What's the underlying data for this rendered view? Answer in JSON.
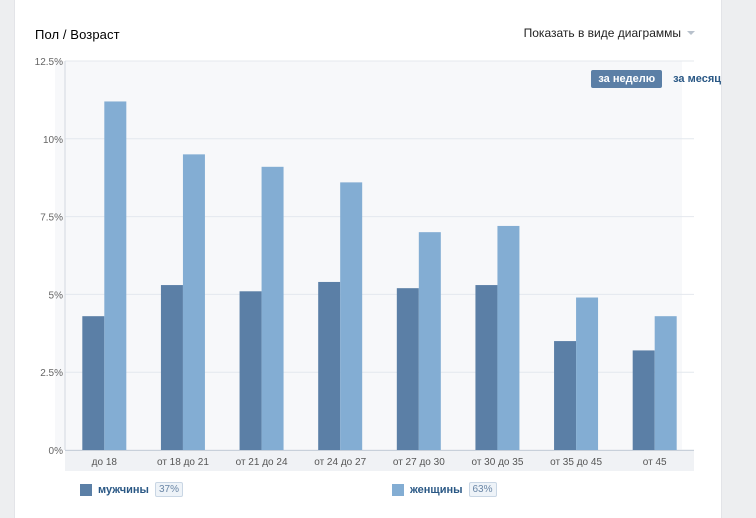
{
  "header": {
    "title": "Пол / Возраст",
    "view_toggle": "Показать в виде диаграммы"
  },
  "period": {
    "week": "за неделю",
    "month": "за месяц"
  },
  "colors": {
    "male": "#5b7fa6",
    "female": "#83add3"
  },
  "legend": [
    {
      "label": "мужчины",
      "pct": "37%"
    },
    {
      "label": "женщины",
      "pct": "63%"
    }
  ],
  "chart_data": {
    "type": "bar",
    "categories": [
      "до 18",
      "от 18 до 21",
      "от 21 до 24",
      "от 24 до 27",
      "от 27 до 30",
      "от 30 до 35",
      "от 35 до 45",
      "от 45"
    ],
    "series": [
      {
        "name": "мужчины",
        "values": [
          4.3,
          5.3,
          5.1,
          5.4,
          5.2,
          5.3,
          3.5,
          3.2
        ]
      },
      {
        "name": "женщины",
        "values": [
          11.2,
          9.5,
          9.1,
          8.6,
          7.0,
          7.2,
          4.9,
          4.3
        ]
      }
    ],
    "yticks": [
      "0%",
      "2.5%",
      "5%",
      "7.5%",
      "10%",
      "12.5%"
    ],
    "ylim": [
      0,
      12.5
    ],
    "grid": true,
    "legend_position": "bottom"
  }
}
